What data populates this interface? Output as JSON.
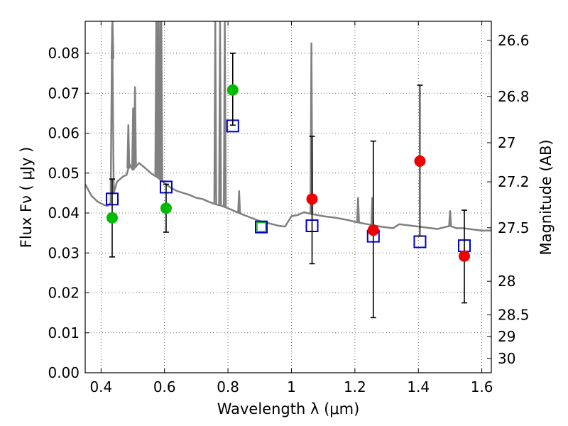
{
  "chart_data": {
    "type": "scatter",
    "title": "",
    "xlabel": "Wavelength  λ (μm)",
    "ylabel": "Flux  Fν  ( μJy )",
    "ylabel_right": "Magnitude (AB)",
    "xlim": [
      0.35,
      1.63
    ],
    "ylim": [
      0.0,
      0.088
    ],
    "grid": true,
    "x_ticks": [
      0.4,
      0.6,
      0.8,
      1.0,
      1.2,
      1.4,
      1.6
    ],
    "x_tick_labels": [
      "0.4",
      "0.6",
      "0.8",
      "1",
      "1.2",
      "1.4",
      "1.6"
    ],
    "y_ticks": [
      0.0,
      0.01,
      0.02,
      0.03,
      0.04,
      0.05,
      0.06,
      0.07,
      0.08
    ],
    "y_tick_labels": [
      "0.00",
      "0.01",
      "0.02",
      "0.03",
      "0.04",
      "0.05",
      "0.06",
      "0.07",
      "0.08"
    ],
    "right_ticks": [
      {
        "label": "26.6",
        "flux": 0.0832
      },
      {
        "label": "26.8",
        "flux": 0.0692
      },
      {
        "label": "27",
        "flux": 0.0576
      },
      {
        "label": "27.2",
        "flux": 0.0478
      },
      {
        "label": "27.5",
        "flux": 0.0363
      },
      {
        "label": "28",
        "flux": 0.0229
      },
      {
        "label": "28.5",
        "flux": 0.0145
      },
      {
        "label": "29",
        "flux": 0.0091
      },
      {
        "label": "30",
        "flux": 0.0036
      }
    ],
    "series": [
      {
        "kind": "line",
        "color": "#808080",
        "x": [
          0.35,
          0.37,
          0.39,
          0.41,
          0.42,
          0.43,
          0.435,
          0.44,
          0.45,
          0.46,
          0.47,
          0.48,
          0.49,
          0.5,
          0.52,
          0.54,
          0.56,
          0.58,
          0.6,
          0.62,
          0.64,
          0.66,
          0.68,
          0.7,
          0.72,
          0.74,
          0.76,
          0.78,
          0.8,
          0.82,
          0.84,
          0.86,
          0.88,
          0.9,
          0.92,
          0.94,
          0.96,
          0.98,
          1.0,
          1.02,
          1.04,
          1.06,
          1.08,
          1.1,
          1.12,
          1.14,
          1.16,
          1.18,
          1.2,
          1.22,
          1.24,
          1.26,
          1.28,
          1.3,
          1.32,
          1.34,
          1.36,
          1.38,
          1.4,
          1.42,
          1.44,
          1.46,
          1.48,
          1.5,
          1.52,
          1.54,
          1.56,
          1.58,
          1.6,
          1.63
        ],
        "y": [
          0.0472,
          0.0443,
          0.0428,
          0.042,
          0.0418,
          0.0425,
          0.087,
          0.045,
          0.0478,
          0.0485,
          0.0492,
          0.0495,
          0.0522,
          0.0508,
          0.0525,
          0.0512,
          0.0498,
          0.0488,
          0.0475,
          0.0463,
          0.0455,
          0.045,
          0.0445,
          0.0438,
          0.0435,
          0.0428,
          0.0422,
          0.0418,
          0.0412,
          0.0405,
          0.0398,
          0.0392,
          0.0386,
          0.038,
          0.0376,
          0.0372,
          0.0368,
          0.0366,
          0.0392,
          0.0395,
          0.0402,
          0.0398,
          0.0395,
          0.0392,
          0.039,
          0.0388,
          0.0385,
          0.0382,
          0.0378,
          0.0375,
          0.0372,
          0.0369,
          0.0366,
          0.0364,
          0.0362,
          0.0372,
          0.037,
          0.0368,
          0.0366,
          0.0364,
          0.0362,
          0.036,
          0.0364,
          0.0368,
          0.0362,
          0.0362,
          0.036,
          0.0358,
          0.0356,
          0.0356
        ]
      },
      {
        "kind": "line_spikes",
        "color": "#808080",
        "spikes": [
          {
            "x": 0.436,
            "y": 0.088
          },
          {
            "x": 0.486,
            "y": 0.062
          },
          {
            "x": 0.501,
            "y": 0.0662
          },
          {
            "x": 0.507,
            "y": 0.0715
          },
          {
            "x": 0.574,
            "y": 0.088
          },
          {
            "x": 0.58,
            "y": 0.088
          },
          {
            "x": 0.586,
            "y": 0.088
          },
          {
            "x": 0.59,
            "y": 0.088
          },
          {
            "x": 0.76,
            "y": 0.088
          },
          {
            "x": 0.775,
            "y": 0.088
          },
          {
            "x": 0.79,
            "y": 0.088
          },
          {
            "x": 0.835,
            "y": 0.0455
          },
          {
            "x": 1.063,
            "y": 0.0825
          },
          {
            "x": 1.21,
            "y": 0.0438
          },
          {
            "x": 1.255,
            "y": 0.0438
          },
          {
            "x": 1.5,
            "y": 0.0405
          }
        ]
      },
      {
        "kind": "markers-square",
        "color": "#0000cc",
        "x": [
          0.435,
          0.605,
          0.815,
          0.905,
          1.065,
          1.258,
          1.405,
          1.545
        ],
        "y": [
          0.0435,
          0.0465,
          0.0618,
          0.0365,
          0.0368,
          0.0342,
          0.0328,
          0.0318
        ]
      },
      {
        "kind": "markers-circle",
        "color": "#00bb00",
        "x": [
          0.435,
          0.605,
          0.815,
          0.905
        ],
        "y": [
          0.0388,
          0.0412,
          0.0708,
          0.0365
        ],
        "yerr_low": [
          0.029,
          0.0352,
          0.062,
          0.0365
        ],
        "yerr_high": [
          0.0485,
          0.0472,
          0.08,
          0.0365
        ]
      },
      {
        "kind": "markers-circle",
        "color": "#ee0000",
        "x": [
          1.065,
          1.258,
          1.405,
          1.545
        ],
        "y": [
          0.0435,
          0.0357,
          0.053,
          0.0292
        ],
        "yerr_low": [
          0.0273,
          0.0138,
          0.0342,
          0.0175
        ],
        "yerr_high": [
          0.0592,
          0.058,
          0.072,
          0.0407
        ]
      }
    ]
  }
}
